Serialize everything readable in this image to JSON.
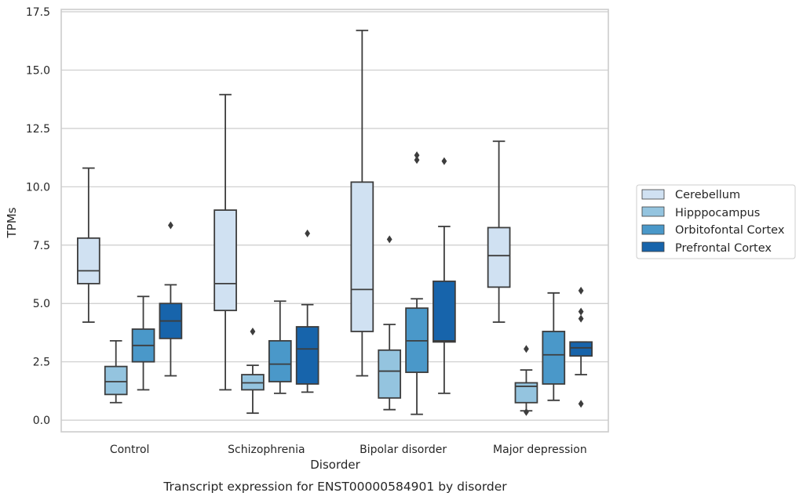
{
  "chart_data": {
    "type": "box",
    "title": "Transcript expression for ENST00000584901 by disorder",
    "xlabel": "Disorder",
    "ylabel": "TPMs",
    "ylim": [
      -0.5,
      17.6
    ],
    "yticks": [
      0.0,
      2.5,
      5.0,
      7.5,
      10.0,
      12.5,
      15.0,
      17.5
    ],
    "ytick_labels": [
      "0.0",
      "2.5",
      "5.0",
      "7.5",
      "10.0",
      "12.5",
      "15.0",
      "17.5"
    ],
    "grid": "horizontal",
    "legend_position": "right",
    "categories": [
      "Control",
      "Schizophrenia",
      "Bipolar disorder",
      "Major depression"
    ],
    "series": [
      {
        "name": "Cerebellum",
        "color": "#d0e1f2",
        "boxes": [
          {
            "whislo": 4.2,
            "q1": 5.85,
            "med": 6.4,
            "q3": 7.8,
            "whishi": 10.8,
            "fliers": []
          },
          {
            "whislo": 1.3,
            "q1": 4.7,
            "med": 5.85,
            "q3": 9.0,
            "whishi": 13.95,
            "fliers": []
          },
          {
            "whislo": 1.9,
            "q1": 3.8,
            "med": 5.6,
            "q3": 10.2,
            "whishi": 16.7,
            "fliers": []
          },
          {
            "whislo": 4.2,
            "q1": 5.7,
            "med": 7.05,
            "q3": 8.25,
            "whishi": 11.95,
            "fliers": []
          }
        ]
      },
      {
        "name": "Hipppocampus",
        "color": "#94c4df",
        "boxes": [
          {
            "whislo": 0.75,
            "q1": 1.1,
            "med": 1.65,
            "q3": 2.3,
            "whishi": 3.4,
            "fliers": []
          },
          {
            "whislo": 0.3,
            "q1": 1.3,
            "med": 1.6,
            "q3": 1.95,
            "whishi": 2.35,
            "fliers": [
              3.8
            ]
          },
          {
            "whislo": 0.45,
            "q1": 0.95,
            "med": 2.1,
            "q3": 3.0,
            "whishi": 4.1,
            "fliers": [
              7.75
            ]
          },
          {
            "whislo": 0.4,
            "q1": 0.75,
            "med": 1.45,
            "q3": 1.6,
            "whishi": 2.15,
            "fliers": [
              3.05,
              0.35
            ]
          }
        ]
      },
      {
        "name": "Orbitofontal Cortex",
        "color": "#4a98c9",
        "boxes": [
          {
            "whislo": 1.3,
            "q1": 2.5,
            "med": 3.2,
            "q3": 3.9,
            "whishi": 5.3,
            "fliers": []
          },
          {
            "whislo": 1.15,
            "q1": 1.65,
            "med": 2.4,
            "q3": 3.4,
            "whishi": 5.1,
            "fliers": []
          },
          {
            "whislo": 0.25,
            "q1": 2.05,
            "med": 3.4,
            "q3": 4.8,
            "whishi": 5.2,
            "fliers": [
              11.35,
              11.15
            ]
          },
          {
            "whislo": 0.85,
            "q1": 1.55,
            "med": 2.8,
            "q3": 3.8,
            "whishi": 5.45,
            "fliers": []
          }
        ]
      },
      {
        "name": "Prefrontal Cortex",
        "color": "#1764ab",
        "boxes": [
          {
            "whislo": 1.9,
            "q1": 3.5,
            "med": 4.25,
            "q3": 5.0,
            "whishi": 5.8,
            "fliers": [
              8.35
            ]
          },
          {
            "whislo": 1.2,
            "q1": 1.55,
            "med": 3.05,
            "q3": 4.0,
            "whishi": 4.95,
            "fliers": [
              8.0
            ]
          },
          {
            "whislo": 1.15,
            "q1": 3.35,
            "med": 3.4,
            "q3": 5.95,
            "whishi": 8.3,
            "fliers": [
              11.1
            ]
          },
          {
            "whislo": 1.95,
            "q1": 2.75,
            "med": 3.1,
            "q3": 3.35,
            "whishi": 3.35,
            "fliers": [
              5.55,
              4.65,
              4.35,
              0.7
            ]
          }
        ]
      }
    ]
  }
}
